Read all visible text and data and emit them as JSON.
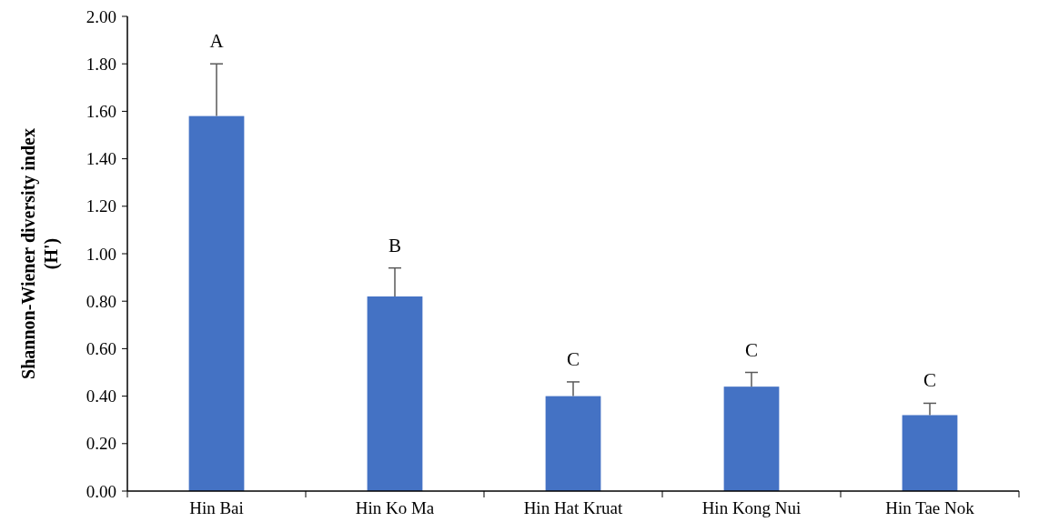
{
  "chart_data": {
    "type": "bar",
    "ylabel": "Shannon-Wiener diversity index\n(H')",
    "categories": [
      "Hin Bai",
      "Hin Ko Ma",
      "Hin Hat Kruat",
      "Hin Kong Nui",
      "Hin Tae Nok"
    ],
    "values": [
      1.58,
      0.82,
      0.4,
      0.44,
      0.32
    ],
    "errors": [
      [
        1.58,
        1.8
      ],
      [
        0.82,
        0.94
      ],
      [
        0.4,
        0.46
      ],
      [
        0.44,
        0.5
      ],
      [
        0.32,
        0.37
      ]
    ],
    "color": "#4472c4",
    "ylim": [
      0,
      2
    ],
    "yticks": [
      {
        "value": 0,
        "label": "0.00"
      },
      {
        "value": 0.2,
        "label": "0.20"
      },
      {
        "value": 0.4,
        "label": "0.40"
      },
      {
        "value": 0.6,
        "label": "0.60"
      },
      {
        "value": 0.8,
        "label": "0.80"
      },
      {
        "value": 1,
        "label": "1.00"
      },
      {
        "value": 1.2,
        "label": "1.20"
      },
      {
        "value": 1.4,
        "label": "1.40"
      },
      {
        "value": 1.6,
        "label": "1.60"
      },
      {
        "value": 1.8,
        "label": "1.80"
      },
      {
        "value": 2,
        "label": "2.00"
      }
    ],
    "annotations": [
      {
        "text": "A",
        "x": "Hin Bai",
        "y": 1.8
      },
      {
        "text": "B",
        "x": "Hin Ko Ma",
        "y": 0.94
      },
      {
        "text": "C",
        "x": "Hin Hat Kruat",
        "y": 0.46
      },
      {
        "text": "C",
        "x": "Hin Kong Nui",
        "y": 0.5
      },
      {
        "text": "C",
        "x": "Hin Tae Nok",
        "y": 0.37
      }
    ],
    "grid": false
  }
}
